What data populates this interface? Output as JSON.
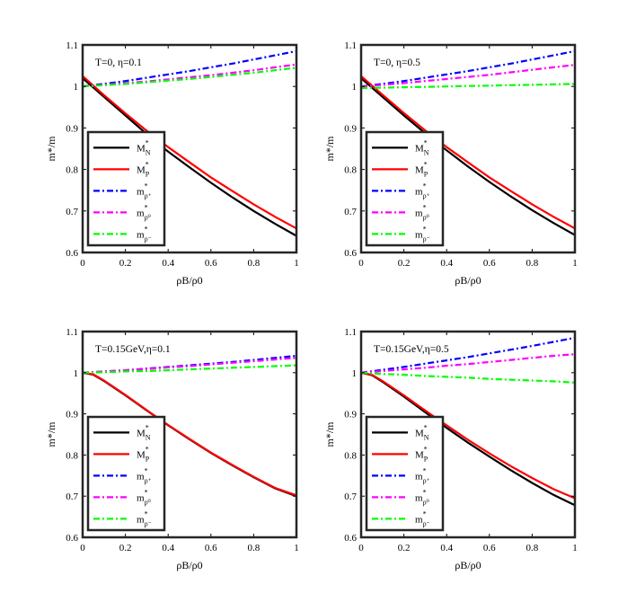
{
  "chart_data": [
    {
      "type": "line",
      "annotation": "T=0, η=0.1",
      "xlabel": "ρB/ρ0",
      "ylabel": "m*/m",
      "xlim": [
        0,
        1
      ],
      "ylim": [
        0.6,
        1.1
      ],
      "xticks": [
        "0",
        "0.2",
        "0.4",
        "0.6",
        "0.8",
        "1"
      ],
      "yticks": [
        "0.6",
        "0.7",
        "0.8",
        "0.9",
        "1",
        "1.1"
      ],
      "legend_position": "lower-left",
      "series": [
        {
          "name": "M*N",
          "label": "M",
          "sup": "*",
          "sub": "N",
          "color": "#000000",
          "dash": "solid",
          "x": [
            0,
            0.1,
            0.2,
            0.3,
            0.4,
            0.5,
            0.6,
            0.7,
            0.8,
            0.9,
            1.0
          ],
          "y": [
            1.02,
            0.975,
            0.93,
            0.885,
            0.843,
            0.805,
            0.768,
            0.733,
            0.7,
            0.669,
            0.64
          ]
        },
        {
          "name": "M*P",
          "label": "M",
          "sup": "*",
          "sub": "P",
          "color": "#ff0000",
          "dash": "solid",
          "x": [
            0,
            0.1,
            0.2,
            0.3,
            0.4,
            0.5,
            0.6,
            0.7,
            0.8,
            0.9,
            1.0
          ],
          "y": [
            1.025,
            0.979,
            0.935,
            0.893,
            0.854,
            0.817,
            0.781,
            0.748,
            0.716,
            0.686,
            0.658
          ]
        },
        {
          "name": "m*ρ+",
          "label": "m",
          "sup": "*",
          "sub": "ρ⁺",
          "color": "#0000ff",
          "dash": "dashdot",
          "x": [
            0,
            0.1,
            0.2,
            0.3,
            0.4,
            0.5,
            0.6,
            0.7,
            0.8,
            0.9,
            1.0
          ],
          "y": [
            1.0,
            1.006,
            1.013,
            1.021,
            1.029,
            1.037,
            1.046,
            1.055,
            1.065,
            1.075,
            1.085
          ]
        },
        {
          "name": "m*ρ0",
          "label": "m",
          "sup": "*",
          "sub": "ρ⁰",
          "color": "#ff00ff",
          "dash": "dashdot",
          "x": [
            0,
            0.1,
            0.2,
            0.3,
            0.4,
            0.5,
            0.6,
            0.7,
            0.8,
            0.9,
            1.0
          ],
          "y": [
            1.0,
            1.004,
            1.008,
            1.012,
            1.017,
            1.022,
            1.027,
            1.033,
            1.039,
            1.046,
            1.053
          ]
        },
        {
          "name": "m*ρ-",
          "label": "m",
          "sup": "*",
          "sub": "ρ⁻",
          "color": "#00ff00",
          "dash": "dashdot",
          "x": [
            0,
            0.1,
            0.2,
            0.3,
            0.4,
            0.5,
            0.6,
            0.7,
            0.8,
            0.9,
            1.0
          ],
          "y": [
            1.0,
            1.003,
            1.006,
            1.01,
            1.014,
            1.018,
            1.023,
            1.028,
            1.033,
            1.039,
            1.045
          ]
        }
      ]
    },
    {
      "type": "line",
      "annotation": "T=0, η=0.5",
      "xlabel": "ρB/ρ0",
      "ylabel": "m*/m",
      "xlim": [
        0,
        1
      ],
      "ylim": [
        0.6,
        1.1
      ],
      "xticks": [
        "0",
        "0.2",
        "0.4",
        "0.6",
        "0.8",
        "1"
      ],
      "yticks": [
        "0.6",
        "0.7",
        "0.8",
        "0.9",
        "1",
        "1.1"
      ],
      "legend_position": "lower-left",
      "series": [
        {
          "name": "M*N",
          "label": "M",
          "sup": "*",
          "sub": "N",
          "color": "#000000",
          "dash": "solid",
          "x": [
            0,
            0.1,
            0.2,
            0.3,
            0.4,
            0.5,
            0.6,
            0.7,
            0.8,
            0.9,
            1.0
          ],
          "y": [
            1.02,
            0.975,
            0.93,
            0.887,
            0.846,
            0.807,
            0.77,
            0.735,
            0.702,
            0.671,
            0.642
          ]
        },
        {
          "name": "M*P",
          "label": "M",
          "sup": "*",
          "sub": "P",
          "color": "#ff0000",
          "dash": "solid",
          "x": [
            0,
            0.1,
            0.2,
            0.3,
            0.4,
            0.5,
            0.6,
            0.7,
            0.8,
            0.9,
            1.0
          ],
          "y": [
            1.025,
            0.98,
            0.936,
            0.894,
            0.854,
            0.817,
            0.781,
            0.748,
            0.716,
            0.686,
            0.658
          ]
        },
        {
          "name": "m*ρ+",
          "label": "m",
          "sup": "*",
          "sub": "ρ⁺",
          "color": "#0000ff",
          "dash": "dashdot",
          "x": [
            0,
            0.1,
            0.2,
            0.3,
            0.4,
            0.5,
            0.6,
            0.7,
            0.8,
            0.9,
            1.0
          ],
          "y": [
            1.0,
            1.006,
            1.013,
            1.021,
            1.029,
            1.037,
            1.046,
            1.055,
            1.065,
            1.075,
            1.085
          ]
        },
        {
          "name": "m*ρ0",
          "label": "m",
          "sup": "*",
          "sub": "ρ⁰",
          "color": "#ff00ff",
          "dash": "dashdot",
          "x": [
            0,
            0.1,
            0.2,
            0.3,
            0.4,
            0.5,
            0.6,
            0.7,
            0.8,
            0.9,
            1.0
          ],
          "y": [
            1.0,
            1.004,
            1.008,
            1.013,
            1.018,
            1.023,
            1.028,
            1.034,
            1.04,
            1.046,
            1.052
          ]
        },
        {
          "name": "m*ρ-",
          "label": "m",
          "sup": "*",
          "sub": "ρ⁻",
          "color": "#00ff00",
          "dash": "dashdot",
          "x": [
            0,
            0.1,
            0.2,
            0.3,
            0.4,
            0.5,
            0.6,
            0.7,
            0.8,
            0.9,
            1.0
          ],
          "y": [
            0.996,
            0.997,
            0.998,
            0.999,
            1.0,
            1.001,
            1.002,
            1.003,
            1.004,
            1.005,
            1.006
          ]
        }
      ]
    },
    {
      "type": "line",
      "annotation": "T=0.15GeV,η=0.1",
      "xlabel": "ρB/ρ0",
      "ylabel": "m*/m",
      "xlim": [
        0,
        1
      ],
      "ylim": [
        0.6,
        1.1
      ],
      "xticks": [
        "0",
        "0.2",
        "0.4",
        "0.6",
        "0.8",
        "1"
      ],
      "yticks": [
        "0.6",
        "0.7",
        "0.8",
        "0.9",
        "1",
        "1.1"
      ],
      "legend_position": "lower-left",
      "series": [
        {
          "name": "M*N",
          "label": "M",
          "sup": "*",
          "sub": "N",
          "color": "#000000",
          "dash": "solid",
          "x": [
            0,
            0.05,
            0.1,
            0.2,
            0.3,
            0.4,
            0.5,
            0.6,
            0.7,
            0.8,
            0.9,
            1.0
          ],
          "y": [
            1.0,
            0.995,
            0.98,
            0.945,
            0.908,
            0.872,
            0.838,
            0.805,
            0.775,
            0.746,
            0.719,
            0.7
          ]
        },
        {
          "name": "M*P",
          "label": "M",
          "sup": "*",
          "sub": "P",
          "color": "#ff0000",
          "dash": "solid",
          "x": [
            0,
            0.05,
            0.1,
            0.2,
            0.3,
            0.4,
            0.5,
            0.6,
            0.7,
            0.8,
            0.9,
            1.0
          ],
          "y": [
            1.0,
            0.996,
            0.981,
            0.946,
            0.909,
            0.873,
            0.839,
            0.806,
            0.776,
            0.747,
            0.72,
            0.702
          ]
        },
        {
          "name": "m*ρ+",
          "label": "m",
          "sup": "*",
          "sub": "ρ⁺",
          "color": "#0000ff",
          "dash": "dashdot",
          "x": [
            0,
            0.1,
            0.2,
            0.3,
            0.4,
            0.5,
            0.6,
            0.7,
            0.8,
            0.9,
            1.0
          ],
          "y": [
            1.0,
            1.003,
            1.006,
            1.01,
            1.014,
            1.018,
            1.022,
            1.026,
            1.031,
            1.036,
            1.041
          ]
        },
        {
          "name": "m*ρ0",
          "label": "m",
          "sup": "*",
          "sub": "ρ⁰",
          "color": "#ff00ff",
          "dash": "dashdot",
          "x": [
            0,
            0.1,
            0.2,
            0.3,
            0.4,
            0.5,
            0.6,
            0.7,
            0.8,
            0.9,
            1.0
          ],
          "y": [
            1.0,
            1.003,
            1.006,
            1.009,
            1.013,
            1.016,
            1.02,
            1.024,
            1.028,
            1.032,
            1.036
          ]
        },
        {
          "name": "m*ρ-",
          "label": "m",
          "sup": "*",
          "sub": "ρ⁻",
          "color": "#00ff00",
          "dash": "dashdot",
          "x": [
            0,
            0.1,
            0.2,
            0.3,
            0.4,
            0.5,
            0.6,
            0.7,
            0.8,
            0.9,
            1.0
          ],
          "y": [
            1.0,
            1.001,
            1.003,
            1.004,
            1.006,
            1.008,
            1.01,
            1.012,
            1.014,
            1.016,
            1.018
          ]
        }
      ]
    },
    {
      "type": "line",
      "annotation": "T=0.15GeV,η=0.5",
      "xlabel": "ρB/ρ0",
      "ylabel": "m*/m",
      "xlim": [
        0,
        1
      ],
      "ylim": [
        0.6,
        1.1
      ],
      "xticks": [
        "0",
        "0.2",
        "0.4",
        "0.6",
        "0.8",
        "1"
      ],
      "yticks": [
        "0.6",
        "0.7",
        "0.8",
        "0.9",
        "1",
        "1.1"
      ],
      "legend_position": "lower-left",
      "series": [
        {
          "name": "M*N",
          "label": "M",
          "sup": "*",
          "sub": "N",
          "color": "#000000",
          "dash": "solid",
          "x": [
            0,
            0.05,
            0.1,
            0.2,
            0.3,
            0.4,
            0.5,
            0.6,
            0.7,
            0.8,
            0.9,
            1.0
          ],
          "y": [
            1.0,
            0.994,
            0.978,
            0.942,
            0.904,
            0.866,
            0.83,
            0.796,
            0.763,
            0.732,
            0.703,
            0.678
          ]
        },
        {
          "name": "M*P",
          "label": "M",
          "sup": "*",
          "sub": "P",
          "color": "#ff0000",
          "dash": "solid",
          "x": [
            0,
            0.05,
            0.1,
            0.2,
            0.3,
            0.4,
            0.5,
            0.6,
            0.7,
            0.8,
            0.9,
            1.0
          ],
          "y": [
            1.0,
            0.995,
            0.98,
            0.945,
            0.908,
            0.872,
            0.837,
            0.804,
            0.773,
            0.744,
            0.717,
            0.695
          ]
        },
        {
          "name": "m*ρ+",
          "label": "m",
          "sup": "*",
          "sub": "ρ⁺",
          "color": "#0000ff",
          "dash": "dashdot",
          "x": [
            0,
            0.1,
            0.2,
            0.3,
            0.4,
            0.5,
            0.6,
            0.7,
            0.8,
            0.9,
            1.0
          ],
          "y": [
            1.0,
            1.007,
            1.014,
            1.022,
            1.03,
            1.038,
            1.047,
            1.056,
            1.065,
            1.075,
            1.085
          ]
        },
        {
          "name": "m*ρ0",
          "label": "m",
          "sup": "*",
          "sub": "ρ⁰",
          "color": "#ff00ff",
          "dash": "dashdot",
          "x": [
            0,
            0.1,
            0.2,
            0.3,
            0.4,
            0.5,
            0.6,
            0.7,
            0.8,
            0.9,
            1.0
          ],
          "y": [
            1.0,
            1.004,
            1.008,
            1.012,
            1.017,
            1.021,
            1.026,
            1.031,
            1.036,
            1.041,
            1.045
          ]
        },
        {
          "name": "m*ρ-",
          "label": "m",
          "sup": "*",
          "sub": "ρ⁻",
          "color": "#00ff00",
          "dash": "dashdot",
          "x": [
            0,
            0.1,
            0.2,
            0.3,
            0.4,
            0.5,
            0.6,
            0.7,
            0.8,
            0.9,
            1.0
          ],
          "y": [
            1.0,
            0.997,
            0.995,
            0.992,
            0.99,
            0.988,
            0.985,
            0.983,
            0.981,
            0.979,
            0.976
          ]
        }
      ]
    }
  ]
}
